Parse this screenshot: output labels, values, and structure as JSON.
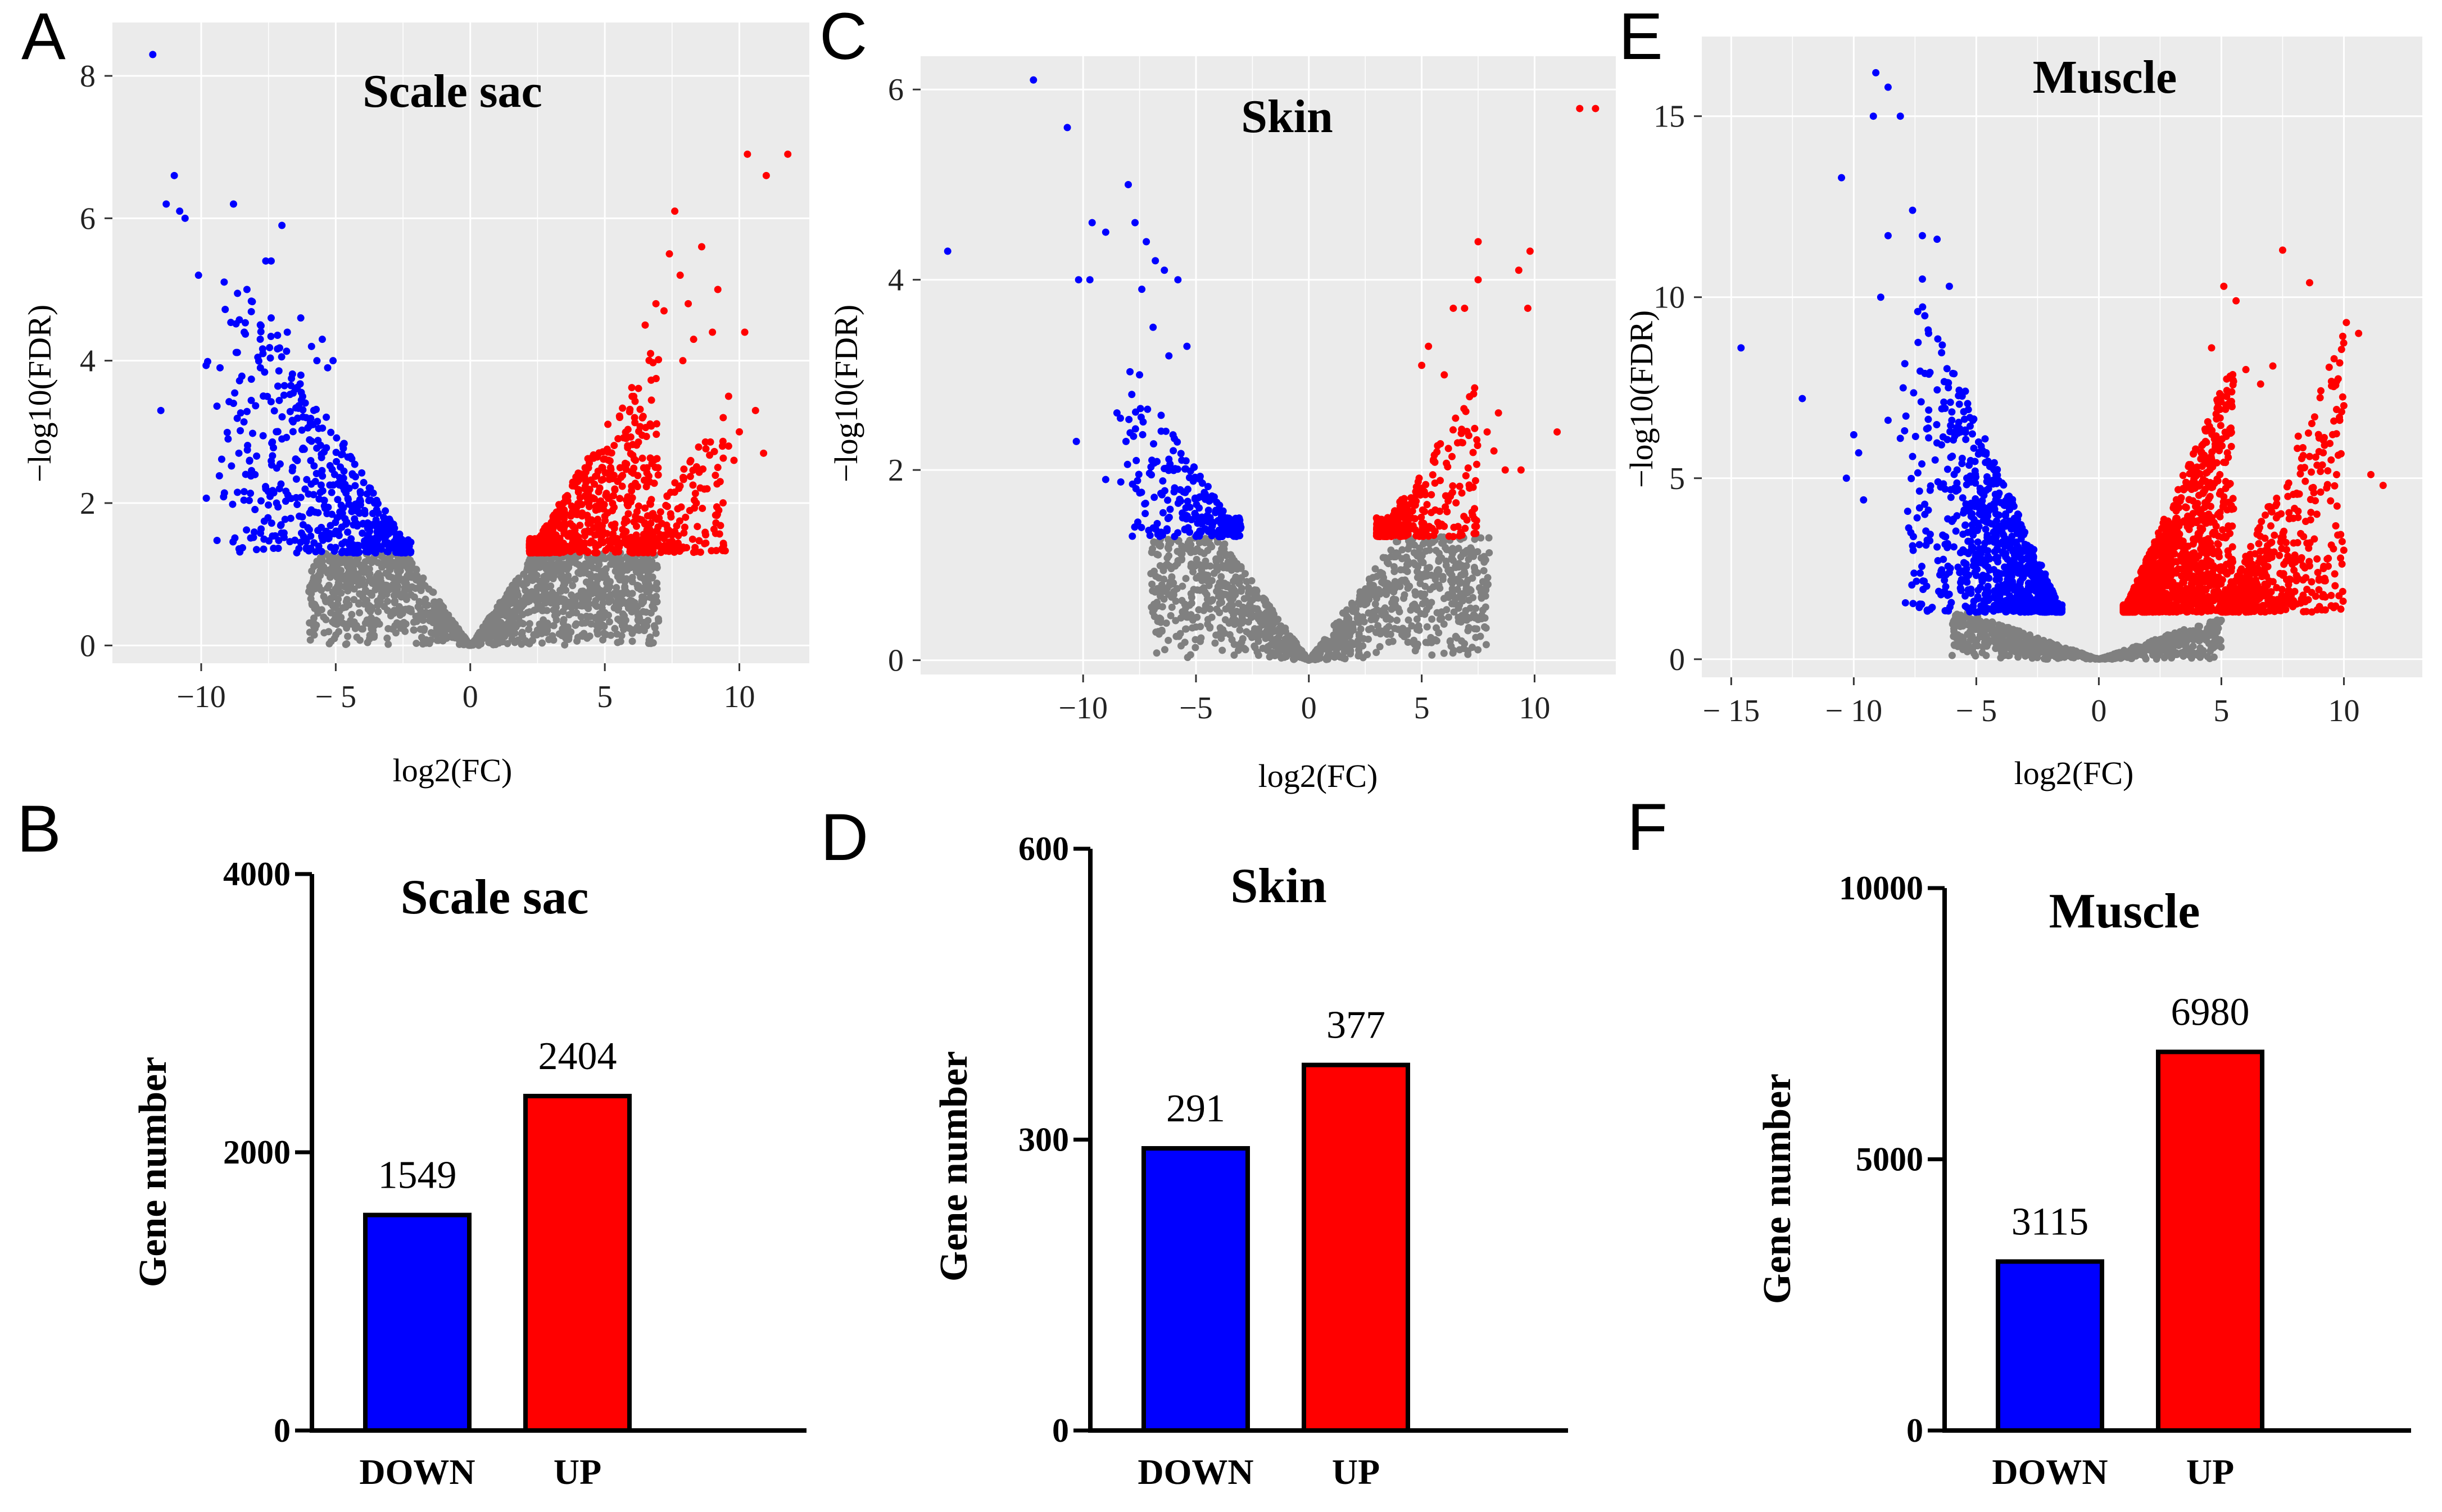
{
  "colors": {
    "down": "#0000ff",
    "up": "#ff0000",
    "ns": "#808080",
    "panel_bg": "#ebebeb",
    "grid": "#ffffff"
  },
  "chart_data": [
    {
      "panel": "A",
      "type": "scatter",
      "title": "Scale sac",
      "xlabel": "log2(FC)",
      "ylabel": "−log10(FDR)",
      "xticks": [
        -10,
        -5,
        0,
        5,
        10
      ],
      "xtick_labels": [
        "−10",
        "− 5",
        "0",
        "5",
        "10"
      ],
      "yticks": [
        0,
        2,
        4,
        6,
        8
      ],
      "xlim": [
        -13.3,
        12.6
      ],
      "ylim": [
        -0.25,
        8.75
      ],
      "fdr_threshold": 1.3,
      "series": [
        {
          "name": "down",
          "points": [
            [
              -11.8,
              8.3
            ],
            [
              -11.3,
              6.2
            ],
            [
              -11.0,
              6.6
            ],
            [
              -10.6,
              6.0
            ],
            [
              -10.8,
              6.1
            ],
            [
              -10.1,
              5.2
            ],
            [
              -11.5,
              3.3
            ],
            [
              -8.8,
              6.2
            ],
            [
              -8.3,
              5.0
            ],
            [
              -7.6,
              5.4
            ],
            [
              -7.4,
              5.4
            ],
            [
              -7.0,
              5.9
            ],
            [
              -9.3,
              3.9
            ],
            [
              -9.0,
              2.9
            ],
            [
              -8.8,
              3.4
            ],
            [
              -8.6,
              2.7
            ],
            [
              -8.4,
              4.4
            ],
            [
              -8.2,
              2.6
            ],
            [
              -8.0,
              2.4
            ],
            [
              -7.8,
              3.9
            ],
            [
              -7.6,
              2.2
            ],
            [
              -7.4,
              4.6
            ],
            [
              -7.2,
              2.0
            ],
            [
              -7.0,
              2.9
            ],
            [
              -6.8,
              4.4
            ],
            [
              -6.6,
              2.5
            ],
            [
              -6.5,
              3.6
            ],
            [
              -6.3,
              4.6
            ],
            [
              -6.1,
              3.2
            ],
            [
              -5.9,
              4.2
            ],
            [
              -5.7,
              4.0
            ],
            [
              -5.5,
              4.3
            ],
            [
              -5.3,
              3.9
            ],
            [
              -5.1,
              4.0
            ]
          ]
        },
        {
          "name": "up",
          "points": [
            [
              11.8,
              6.9
            ],
            [
              11.0,
              6.6
            ],
            [
              10.3,
              6.9
            ],
            [
              10.6,
              3.3
            ],
            [
              10.9,
              2.7
            ],
            [
              10.2,
              4.4
            ],
            [
              9.6,
              3.5
            ],
            [
              7.6,
              6.1
            ],
            [
              8.6,
              5.6
            ],
            [
              7.4,
              5.5
            ],
            [
              7.8,
              5.2
            ],
            [
              8.1,
              4.8
            ],
            [
              9.2,
              5.0
            ],
            [
              9.0,
              4.4
            ],
            [
              6.9,
              4.8
            ],
            [
              7.2,
              4.7
            ],
            [
              6.5,
              4.5
            ],
            [
              6.7,
              4.1
            ],
            [
              8.3,
              4.3
            ],
            [
              7.9,
              4.0
            ],
            [
              9.4,
              3.2
            ],
            [
              9.8,
              2.6
            ],
            [
              10.0,
              3.0
            ],
            [
              9.6,
              2.8
            ],
            [
              9.2,
              2.5
            ],
            [
              8.8,
              2.2
            ],
            [
              8.4,
              2.0
            ],
            [
              8.0,
              1.8
            ],
            [
              7.6,
              1.6
            ],
            [
              7.2,
              1.5
            ]
          ]
        }
      ],
      "density": {
        "down": {
          "x_start": -10,
          "x_end": -2.2,
          "n": 520
        },
        "up": {
          "x_start": 2.2,
          "x_end": 7.0,
          "n": 650
        },
        "up_arm": {
          "x_start": 6.0,
          "x_end": 9.5,
          "n": 220
        },
        "ns_slope": 0.55,
        "ns_n": 1400,
        "ns_xrange": [
          -6,
          7
        ]
      }
    },
    {
      "panel": "C",
      "type": "scatter",
      "title": "Skin",
      "xlabel": "log2(FC)",
      "ylabel": "−log10(FDR)",
      "xticks": [
        -10,
        -5,
        0,
        5,
        10
      ],
      "xtick_labels": [
        "−10",
        "−5",
        "0",
        "5",
        "10"
      ],
      "yticks": [
        0,
        2,
        4,
        6
      ],
      "xlim": [
        -17.2,
        13.6
      ],
      "ylim": [
        -0.15,
        6.35
      ],
      "fdr_threshold": 1.3,
      "series": [
        {
          "name": "down",
          "points": [
            [
              -12.2,
              6.1
            ],
            [
              -10.7,
              5.6
            ],
            [
              -16.0,
              4.3
            ],
            [
              -8.0,
              5.0
            ],
            [
              -9.6,
              4.6
            ],
            [
              -9.0,
              4.5
            ],
            [
              -10.2,
              4.0
            ],
            [
              -9.7,
              4.0
            ],
            [
              -7.7,
              4.6
            ],
            [
              -7.2,
              4.4
            ],
            [
              -6.8,
              4.2
            ],
            [
              -6.4,
              4.1
            ],
            [
              -5.8,
              4.0
            ],
            [
              -7.4,
              3.9
            ],
            [
              -6.9,
              3.5
            ],
            [
              -5.4,
              3.3
            ],
            [
              -6.2,
              3.2
            ],
            [
              -10.3,
              2.3
            ],
            [
              -8.5,
              2.6
            ],
            [
              -7.5,
              3.0
            ],
            [
              -9.0,
              1.9
            ],
            [
              -8.1,
              2.3
            ]
          ]
        },
        {
          "name": "up",
          "points": [
            [
              12.0,
              5.8
            ],
            [
              12.7,
              5.8
            ],
            [
              7.5,
              4.4
            ],
            [
              9.8,
              4.3
            ],
            [
              9.3,
              4.1
            ],
            [
              7.5,
              4.0
            ],
            [
              6.9,
              3.7
            ],
            [
              6.4,
              3.7
            ],
            [
              9.7,
              3.7
            ],
            [
              5.3,
              3.3
            ],
            [
              5.0,
              3.1
            ],
            [
              6.0,
              3.0
            ],
            [
              11.0,
              2.4
            ],
            [
              8.4,
              2.6
            ],
            [
              7.9,
              2.4
            ],
            [
              8.2,
              2.2
            ],
            [
              8.7,
              2.0
            ],
            [
              9.4,
              2.0
            ],
            [
              7.3,
              2.8
            ]
          ]
        }
      ],
      "density": {
        "down": {
          "x_start": -8.5,
          "x_end": -3.0,
          "n": 230
        },
        "up": {
          "x_start": 3.0,
          "x_end": 7.5,
          "n": 280
        },
        "up_arm": {
          "x_start": 0,
          "x_end": 0,
          "n": 0
        },
        "ns_slope": 0.33,
        "ns_n": 1100,
        "ns_xrange": [
          -7,
          8
        ]
      }
    },
    {
      "panel": "E",
      "type": "scatter",
      "title": "Muscle",
      "xlabel": "log2(FC)",
      "ylabel": "−log10(FDR)",
      "xticks": [
        -15,
        -10,
        -5,
        0,
        5,
        10
      ],
      "xtick_labels": [
        "− 15",
        "− 10",
        "− 5",
        "0",
        "5",
        "10"
      ],
      "yticks": [
        0,
        5,
        10,
        15
      ],
      "xlim": [
        -16.2,
        13.2
      ],
      "ylim": [
        -0.5,
        17.2
      ],
      "fdr_threshold": 1.3,
      "series": [
        {
          "name": "down",
          "points": [
            [
              -9.1,
              16.2
            ],
            [
              -8.6,
              15.8
            ],
            [
              -9.2,
              15.0
            ],
            [
              -8.1,
              15.0
            ],
            [
              -10.5,
              13.3
            ],
            [
              -7.6,
              12.4
            ],
            [
              -8.6,
              11.7
            ],
            [
              -7.2,
              11.7
            ],
            [
              -6.6,
              11.6
            ],
            [
              -8.9,
              10.0
            ],
            [
              -7.2,
              10.5
            ],
            [
              -6.1,
              10.3
            ],
            [
              -14.6,
              8.6
            ],
            [
              -12.1,
              7.2
            ],
            [
              -10.0,
              6.2
            ],
            [
              -9.8,
              5.7
            ],
            [
              -10.3,
              5.0
            ],
            [
              -9.6,
              4.4
            ],
            [
              -8.1,
              6.1
            ],
            [
              -8.6,
              6.6
            ],
            [
              -7.6,
              5.6
            ],
            [
              -7.1,
              4.0
            ],
            [
              -6.6,
              3.1
            ],
            [
              -6.1,
              2.4
            ],
            [
              -5.6,
              2.2
            ],
            [
              -5.1,
              1.6
            ],
            [
              -4.6,
              1.4
            ],
            [
              -6.0,
              6.6
            ]
          ]
        },
        {
          "name": "up",
          "points": [
            [
              7.5,
              11.3
            ],
            [
              8.6,
              10.4
            ],
            [
              5.1,
              10.3
            ],
            [
              5.6,
              9.9
            ],
            [
              10.1,
              9.3
            ],
            [
              10.6,
              9.0
            ],
            [
              9.6,
              8.3
            ],
            [
              4.6,
              8.6
            ],
            [
              6.0,
              8.0
            ],
            [
              11.6,
              4.8
            ],
            [
              11.1,
              5.1
            ],
            [
              6.6,
              7.6
            ],
            [
              7.1,
              8.1
            ],
            [
              9.1,
              6.1
            ],
            [
              8.6,
              5.6
            ],
            [
              4.9,
              7.1
            ]
          ]
        }
      ],
      "density": {
        "down": {
          "x_start": -8.0,
          "x_end": -1.5,
          "n": 900
        },
        "up": {
          "x_start": 1.0,
          "x_end": 5.5,
          "n": 1400
        },
        "up_arm": {
          "x_start": 5.0,
          "x_end": 10.0,
          "n": 550
        },
        "ns_slope": 0.24,
        "ns_n": 700,
        "ns_xrange": [
          -6,
          5
        ]
      }
    },
    {
      "panel": "B",
      "type": "bar",
      "title": "Scale sac",
      "ylabel": "Gene number",
      "categories": [
        "DOWN",
        "UP"
      ],
      "values": [
        1549,
        2404
      ],
      "value_labels": [
        "1549",
        "2404"
      ],
      "yticks": [
        0,
        2000,
        4000
      ],
      "ylim": [
        0,
        4000
      ]
    },
    {
      "panel": "D",
      "type": "bar",
      "title": "Skin",
      "ylabel": "Gene number",
      "categories": [
        "DOWN",
        "UP"
      ],
      "values": [
        291,
        377
      ],
      "value_labels": [
        "291",
        "377"
      ],
      "yticks": [
        0,
        300,
        600
      ],
      "ylim": [
        0,
        600
      ]
    },
    {
      "panel": "F",
      "type": "bar",
      "title": "Muscle",
      "ylabel": "Gene number",
      "categories": [
        "DOWN",
        "UP"
      ],
      "values": [
        3115,
        6980
      ],
      "value_labels": [
        "3115",
        "6980"
      ],
      "yticks": [
        0,
        5000,
        10000
      ],
      "ylim": [
        0,
        10000
      ]
    }
  ]
}
